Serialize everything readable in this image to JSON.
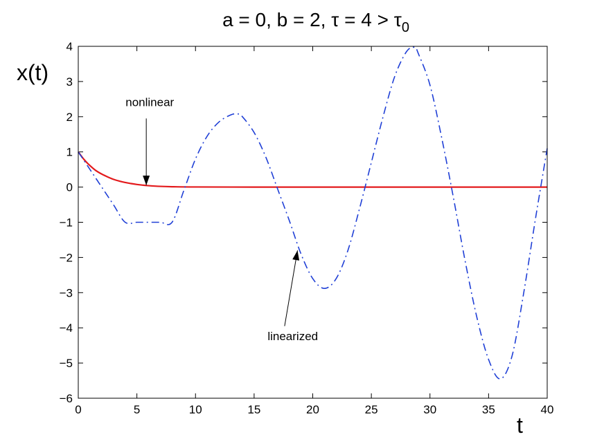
{
  "chart_data": {
    "type": "line",
    "title_main": "a = 0, b = 2, τ = 4 > τ",
    "title_subscript": "0",
    "xlabel": "t",
    "ylabel": "x(t)",
    "xlim": [
      0,
      40
    ],
    "ylim": [
      -6,
      4
    ],
    "xticks": [
      0,
      5,
      10,
      15,
      20,
      25,
      30,
      35,
      40
    ],
    "yticks": [
      -6,
      -5,
      -4,
      -3,
      -2,
      -1,
      0,
      1,
      2,
      3,
      4
    ],
    "xtick_labels": [
      "0",
      "5",
      "10",
      "15",
      "20",
      "25",
      "30",
      "35",
      "40"
    ],
    "ytick_labels": [
      "−6",
      "−5",
      "−4",
      "−3",
      "−2",
      "−1",
      "0",
      "1",
      "2",
      "3",
      "4"
    ],
    "grid": false,
    "series": [
      {
        "name": "nonlinear",
        "color": "#e31a1c",
        "style": "solid",
        "x": [
          0,
          0.5,
          1,
          1.5,
          2,
          2.5,
          3,
          3.5,
          4,
          4.5,
          5,
          5.5,
          6,
          7,
          8,
          10,
          15,
          20,
          25,
          30,
          35,
          40
        ],
        "y": [
          1,
          0.78,
          0.61,
          0.47,
          0.37,
          0.29,
          0.22,
          0.17,
          0.13,
          0.1,
          0.075,
          0.055,
          0.04,
          0.02,
          0.01,
          0.003,
          0,
          0,
          0,
          0,
          0,
          0
        ]
      },
      {
        "name": "linearized",
        "color": "#1f3fd6",
        "style": "dashdot",
        "x": [
          0,
          1,
          2,
          3,
          4,
          5,
          6,
          7,
          8,
          9,
          10,
          11,
          12,
          13,
          13.6,
          14,
          15,
          16,
          17,
          18,
          19,
          20,
          21,
          22,
          23,
          24,
          25,
          26,
          27,
          28,
          28.7,
          29,
          30,
          31,
          32,
          33,
          34,
          35,
          36,
          37,
          38,
          39,
          40
        ],
        "y": [
          1,
          0.5,
          0,
          -0.5,
          -1,
          -1,
          -1,
          -1,
          -1,
          -0.1,
          0.8,
          1.45,
          1.85,
          2.05,
          2.08,
          2.0,
          1.55,
          0.85,
          -0.05,
          -0.95,
          -1.9,
          -2.6,
          -2.88,
          -2.6,
          -1.8,
          -0.6,
          0.7,
          2.0,
          3.15,
          3.85,
          3.97,
          3.8,
          2.9,
          1.4,
          -0.3,
          -2.1,
          -3.7,
          -4.9,
          -5.45,
          -4.8,
          -3.0,
          -0.9,
          1.1
        ]
      }
    ],
    "annotations": [
      {
        "text": "nonlinear",
        "text_x": 6.1,
        "text_y": 2.3,
        "arrow_from": [
          5.8,
          1.95
        ],
        "arrow_to": [
          5.8,
          0.05
        ]
      },
      {
        "text": "linearized",
        "text_x": 18.3,
        "text_y": -4.35,
        "arrow_from": [
          17.6,
          -3.95
        ],
        "arrow_to": [
          18.7,
          -1.8
        ]
      }
    ]
  }
}
